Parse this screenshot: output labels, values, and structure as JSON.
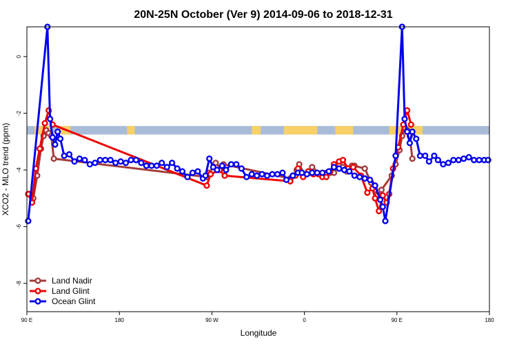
{
  "chart_data": {
    "type": "line",
    "title": "20N-25N October (Ver 9)   2014-09-06 to 2018-12-31",
    "xlabel": "Longitude",
    "ylabel": "XCO2 - MLO trend (ppm)",
    "xlim": [
      -90,
      270
    ],
    "ylim": [
      -9,
      1.05
    ],
    "x_ticks": [
      {
        "value": -90,
        "label": "90 E"
      },
      {
        "value": -18,
        "label": "180"
      },
      {
        "value": 54,
        "label": "90 W"
      },
      {
        "value": 126,
        "label": "0"
      },
      {
        "value": 198,
        "label": "90 E"
      },
      {
        "value": 270,
        "label": "180"
      }
    ],
    "y_ticks": [
      -8,
      -6,
      -4,
      -2,
      0
    ],
    "grid": false,
    "legend_position": "bottom-left",
    "map_band": {
      "y_range": [
        -2.75,
        -2.45
      ],
      "ocean_color": "#a8bcd8",
      "land_color": "#f7d068"
    },
    "series": [
      {
        "name": "Land Nadir",
        "color": "#a33b3b",
        "points": [
          [
            -88,
            -4.85
          ],
          [
            -85,
            -5.0
          ],
          [
            -82,
            -4.2
          ],
          [
            -79,
            -3.25
          ],
          [
            -77,
            -2.8
          ],
          [
            -75,
            -2.6
          ],
          [
            -73,
            -2.7
          ],
          [
            -71,
            -2.8
          ],
          [
            -69,
            -3.6
          ],
          [
            50,
            -4.25
          ],
          [
            52,
            -4.1
          ],
          [
            57,
            -3.75
          ],
          [
            61,
            -3.95
          ],
          [
            63,
            -3.8
          ],
          [
            115,
            -4.3
          ],
          [
            117,
            -4.2
          ],
          [
            120,
            -4.0
          ],
          [
            122,
            -3.8
          ],
          [
            126,
            -4.15
          ],
          [
            130,
            -4.1
          ],
          [
            132,
            -3.9
          ],
          [
            140,
            -4.2
          ],
          [
            143,
            -4.1
          ],
          [
            146,
            -4.1
          ],
          [
            149,
            -4.1
          ],
          [
            153,
            -3.8
          ],
          [
            156,
            -3.9
          ],
          [
            159,
            -4.05
          ],
          [
            163,
            -3.85
          ],
          [
            165,
            -3.85
          ],
          [
            173,
            -3.95
          ],
          [
            178,
            -4.45
          ],
          [
            181,
            -4.7
          ],
          [
            183,
            -4.9
          ],
          [
            186,
            -4.7
          ],
          [
            194,
            -4.2
          ],
          [
            197,
            -3.8
          ],
          [
            200,
            -3.3
          ],
          [
            202,
            -2.8
          ],
          [
            204,
            -2.5
          ],
          [
            206,
            -2.6
          ],
          [
            208,
            -2.8
          ],
          [
            210,
            -3.6
          ]
        ]
      },
      {
        "name": "Land Glint",
        "color": "#ee0000",
        "points": [
          [
            -89,
            -4.85
          ],
          [
            -86,
            -5.15
          ],
          [
            -83,
            -3.95
          ],
          [
            -80,
            -3.25
          ],
          [
            -76,
            -2.35
          ],
          [
            -73,
            -1.9
          ],
          [
            -70,
            -2.4
          ],
          [
            50,
            -4.55
          ],
          [
            53,
            -4.15
          ],
          [
            60,
            -4.0
          ],
          [
            64,
            -4.2
          ],
          [
            115,
            -4.4
          ],
          [
            119,
            -4.2
          ],
          [
            121,
            -3.95
          ],
          [
            125,
            -4.25
          ],
          [
            129,
            -4.05
          ],
          [
            133,
            -4.15
          ],
          [
            137,
            -4.15
          ],
          [
            140,
            -4.25
          ],
          [
            143,
            -4.25
          ],
          [
            146,
            -4.05
          ],
          [
            149,
            -3.8
          ],
          [
            153,
            -3.7
          ],
          [
            156,
            -3.65
          ],
          [
            160,
            -3.95
          ],
          [
            164,
            -3.9
          ],
          [
            170,
            -4.2
          ],
          [
            175,
            -4.8
          ],
          [
            179,
            -4.65
          ],
          [
            181,
            -5.0
          ],
          [
            184,
            -5.45
          ],
          [
            187,
            -4.9
          ],
          [
            190,
            -5.15
          ],
          [
            192,
            -4.85
          ],
          [
            195,
            -3.95
          ],
          [
            199,
            -3.2
          ],
          [
            203,
            -2.4
          ],
          [
            206,
            -1.9
          ],
          [
            209,
            -2.4
          ]
        ]
      },
      {
        "name": "Ocean Glint",
        "color": "#0000ee",
        "points": [
          [
            -89,
            -5.8
          ],
          [
            -74,
            1.05
          ],
          [
            -72,
            -2.2
          ],
          [
            -70,
            -2.85
          ],
          [
            -68,
            -3.1
          ],
          [
            -66,
            -2.65
          ],
          [
            -64,
            -2.9
          ],
          [
            -61,
            -3.5
          ],
          [
            -57,
            -3.45
          ],
          [
            -53,
            -3.7
          ],
          [
            -49,
            -3.6
          ],
          [
            -45,
            -3.65
          ],
          [
            -41,
            -3.8
          ],
          [
            -37,
            -3.75
          ],
          [
            -33,
            -3.65
          ],
          [
            -29,
            -3.65
          ],
          [
            -25,
            -3.65
          ],
          [
            -21,
            -3.75
          ],
          [
            -17,
            -3.7
          ],
          [
            -13,
            -3.75
          ],
          [
            -9,
            -3.65
          ],
          [
            -5,
            -3.65
          ],
          [
            -1,
            -3.75
          ],
          [
            3,
            -3.85
          ],
          [
            7,
            -3.85
          ],
          [
            11,
            -3.85
          ],
          [
            15,
            -3.75
          ],
          [
            19,
            -3.9
          ],
          [
            23,
            -3.75
          ],
          [
            27,
            -3.95
          ],
          [
            31,
            -4.05
          ],
          [
            35,
            -4.25
          ],
          [
            39,
            -4.1
          ],
          [
            43,
            -4.05
          ],
          [
            47,
            -4.3
          ],
          [
            49,
            -4.2
          ],
          [
            52,
            -3.6
          ],
          [
            55,
            -3.9
          ],
          [
            58,
            -4.0
          ],
          [
            62,
            -3.85
          ],
          [
            65,
            -4.0
          ],
          [
            69,
            -3.8
          ],
          [
            73,
            -3.8
          ],
          [
            77,
            -3.95
          ],
          [
            81,
            -4.25
          ],
          [
            85,
            -4.15
          ],
          [
            89,
            -4.2
          ],
          [
            93,
            -4.15
          ],
          [
            97,
            -4.2
          ],
          [
            101,
            -4.15
          ],
          [
            105,
            -4.15
          ],
          [
            109,
            -4.1
          ],
          [
            112,
            -4.35
          ],
          [
            117,
            -4.2
          ],
          [
            121,
            -4.1
          ],
          [
            124,
            -4.1
          ],
          [
            128,
            -4.15
          ],
          [
            132,
            -4.1
          ],
          [
            136,
            -4.1
          ],
          [
            140,
            -4.1
          ],
          [
            145,
            -4.05
          ],
          [
            149,
            -3.9
          ],
          [
            153,
            -3.95
          ],
          [
            157,
            -4.0
          ],
          [
            161,
            -4.05
          ],
          [
            165,
            -4.2
          ],
          [
            169,
            -4.25
          ],
          [
            173,
            -4.3
          ],
          [
            177,
            -4.35
          ],
          [
            181,
            -4.55
          ],
          [
            185,
            -5.05
          ],
          [
            187,
            -5.3
          ],
          [
            189,
            -5.8
          ],
          [
            197,
            -3.5
          ],
          [
            202,
            1.05
          ],
          [
            204,
            -2.2
          ],
          [
            206,
            -2.65
          ],
          [
            208,
            -3.05
          ],
          [
            210,
            -2.65
          ],
          [
            213,
            -2.9
          ],
          [
            216,
            -3.5
          ],
          [
            220,
            -3.5
          ],
          [
            223,
            -3.7
          ],
          [
            227,
            -3.5
          ],
          [
            230,
            -3.65
          ],
          [
            234,
            -3.8
          ],
          [
            238,
            -3.75
          ],
          [
            242,
            -3.65
          ],
          [
            246,
            -3.65
          ],
          [
            250,
            -3.6
          ],
          [
            254,
            -3.55
          ],
          [
            258,
            -3.65
          ],
          [
            262,
            -3.65
          ],
          [
            266,
            -3.65
          ],
          [
            269,
            -3.65
          ]
        ]
      }
    ]
  }
}
